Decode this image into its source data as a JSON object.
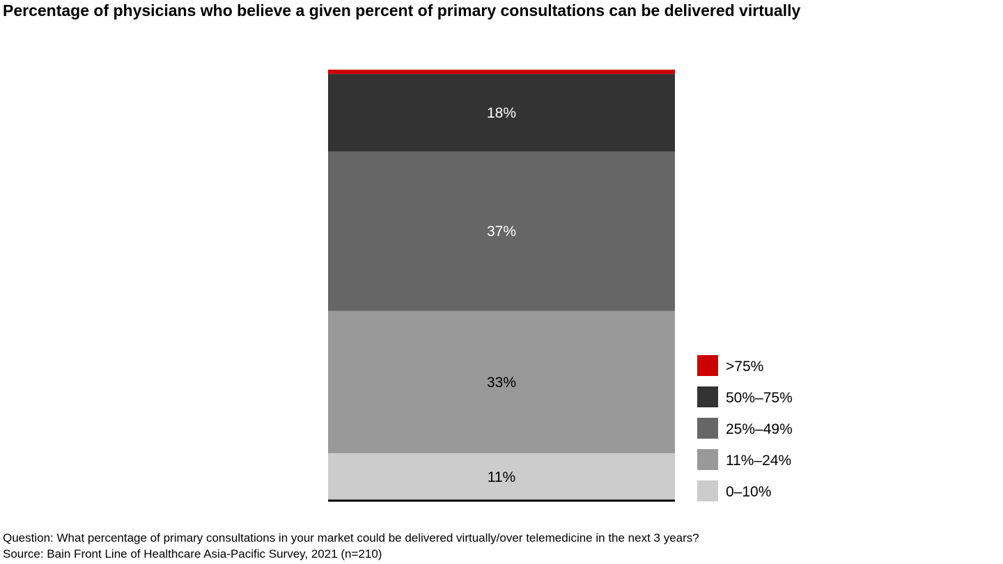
{
  "chart_data": {
    "type": "bar",
    "stacked": true,
    "title": "Percentage of physicians who believe a given percent of primary consultations can be delivered virtually",
    "xlabel": "",
    "ylabel": "",
    "ylim": [
      0,
      100
    ],
    "grid": false,
    "legend_position": "bottom-right",
    "series": [
      {
        "name": "0–10%",
        "value": 11,
        "label": "11%",
        "color": "#cccccc",
        "label_color": "#000000"
      },
      {
        "name": "11%–24%",
        "value": 33,
        "label": "33%",
        "color": "#999999",
        "label_color": "#000000"
      },
      {
        "name": "25%–49%",
        "value": 37,
        "label": "37%",
        "color": "#666666",
        "label_color": "#ffffff"
      },
      {
        "name": "50%–75%",
        "value": 18,
        "label": "18%",
        "color": "#333333",
        "label_color": "#ffffff"
      },
      {
        "name": ">75%",
        "value": 1,
        "label": "",
        "color": "#cc0000",
        "label_color": "#ffffff"
      }
    ],
    "legend_order": [
      ">75%",
      "50%–75%",
      "25%–49%",
      "11%–24%",
      "0–10%"
    ]
  },
  "footnotes": {
    "question": "Question: What percentage of primary consultations in your market could be delivered virtually/over telemedicine in the next 3 years?",
    "source": "Source: Bain Front Line of Healthcare Asia-Pacific Survey, 2021 (n=210)"
  }
}
